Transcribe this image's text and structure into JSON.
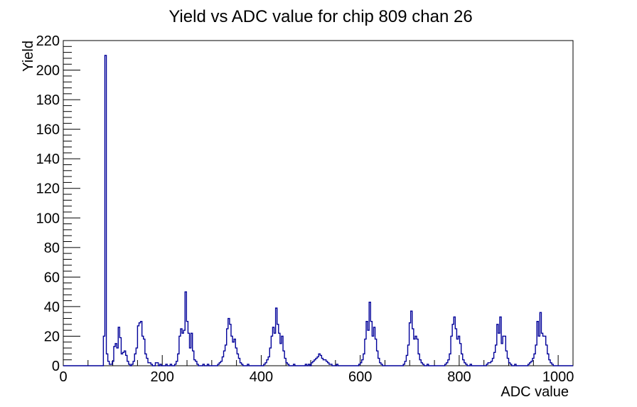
{
  "header": {
    "title": "Yield vs ADC value for chip 809 chan 26"
  },
  "chart_data": {
    "type": "bar",
    "title": "Yield vs ADC value for chip 809 chan 26",
    "xlabel": "ADC value",
    "ylabel": "Yield",
    "xlim": [
      0,
      1030
    ],
    "ylim": [
      0,
      220
    ],
    "grid": false,
    "legend": "none",
    "line_color": "#000099",
    "x_major_ticks": [
      0,
      200,
      400,
      600,
      800,
      1000
    ],
    "x_minor_step": 50,
    "y_major_ticks": [
      0,
      20,
      40,
      60,
      80,
      100,
      120,
      140,
      160,
      180,
      200,
      220
    ],
    "y_minor_step": 4,
    "bin_width": 3,
    "bins": [
      [
        81,
        20
      ],
      [
        84,
        210
      ],
      [
        87,
        8
      ],
      [
        90,
        3
      ],
      [
        93,
        1
      ],
      [
        96,
        1
      ],
      [
        99,
        3
      ],
      [
        102,
        13
      ],
      [
        105,
        15
      ],
      [
        108,
        12
      ],
      [
        111,
        26
      ],
      [
        114,
        19
      ],
      [
        117,
        8
      ],
      [
        120,
        9
      ],
      [
        123,
        10
      ],
      [
        126,
        7
      ],
      [
        129,
        3
      ],
      [
        132,
        1
      ],
      [
        138,
        1
      ],
      [
        141,
        3
      ],
      [
        144,
        8
      ],
      [
        147,
        12
      ],
      [
        150,
        27
      ],
      [
        153,
        29
      ],
      [
        156,
        30
      ],
      [
        159,
        20
      ],
      [
        162,
        18
      ],
      [
        165,
        8
      ],
      [
        168,
        5
      ],
      [
        171,
        2
      ],
      [
        174,
        2
      ],
      [
        177,
        1
      ],
      [
        186,
        2
      ],
      [
        189,
        2
      ],
      [
        195,
        1
      ],
      [
        207,
        1
      ],
      [
        216,
        1
      ],
      [
        225,
        1
      ],
      [
        228,
        3
      ],
      [
        231,
        8
      ],
      [
        234,
        20
      ],
      [
        237,
        25
      ],
      [
        240,
        22
      ],
      [
        243,
        24
      ],
      [
        246,
        50
      ],
      [
        249,
        30
      ],
      [
        252,
        22
      ],
      [
        255,
        12
      ],
      [
        258,
        22
      ],
      [
        261,
        10
      ],
      [
        264,
        4
      ],
      [
        267,
        3
      ],
      [
        270,
        1
      ],
      [
        282,
        1
      ],
      [
        291,
        1
      ],
      [
        312,
        1
      ],
      [
        315,
        2
      ],
      [
        318,
        3
      ],
      [
        321,
        6
      ],
      [
        324,
        10
      ],
      [
        327,
        14
      ],
      [
        330,
        25
      ],
      [
        333,
        32
      ],
      [
        336,
        28
      ],
      [
        339,
        20
      ],
      [
        342,
        16
      ],
      [
        345,
        18
      ],
      [
        348,
        12
      ],
      [
        351,
        8
      ],
      [
        354,
        5
      ],
      [
        357,
        2
      ],
      [
        360,
        1
      ],
      [
        372,
        1
      ],
      [
        405,
        1
      ],
      [
        408,
        2
      ],
      [
        411,
        4
      ],
      [
        414,
        6
      ],
      [
        417,
        12
      ],
      [
        420,
        20
      ],
      [
        423,
        26
      ],
      [
        426,
        22
      ],
      [
        429,
        39
      ],
      [
        432,
        28
      ],
      [
        435,
        22
      ],
      [
        438,
        15
      ],
      [
        441,
        20
      ],
      [
        444,
        10
      ],
      [
        447,
        5
      ],
      [
        450,
        2
      ],
      [
        453,
        1
      ],
      [
        465,
        1
      ],
      [
        489,
        1
      ],
      [
        495,
        1
      ],
      [
        501,
        2
      ],
      [
        504,
        3
      ],
      [
        507,
        4
      ],
      [
        510,
        5
      ],
      [
        513,
        6
      ],
      [
        516,
        8
      ],
      [
        519,
        7
      ],
      [
        522,
        5
      ],
      [
        525,
        4
      ],
      [
        528,
        4
      ],
      [
        531,
        3
      ],
      [
        534,
        2
      ],
      [
        537,
        1
      ],
      [
        540,
        1
      ],
      [
        552,
        1
      ],
      [
        597,
        1
      ],
      [
        600,
        2
      ],
      [
        603,
        4
      ],
      [
        606,
        8
      ],
      [
        609,
        18
      ],
      [
        612,
        30
      ],
      [
        615,
        24
      ],
      [
        618,
        43
      ],
      [
        621,
        30
      ],
      [
        624,
        20
      ],
      [
        627,
        26
      ],
      [
        630,
        18
      ],
      [
        633,
        10
      ],
      [
        636,
        5
      ],
      [
        639,
        2
      ],
      [
        642,
        1
      ],
      [
        687,
        1
      ],
      [
        690,
        3
      ],
      [
        693,
        7
      ],
      [
        696,
        14
      ],
      [
        699,
        29
      ],
      [
        702,
        37
      ],
      [
        705,
        25
      ],
      [
        708,
        18
      ],
      [
        711,
        20
      ],
      [
        714,
        18
      ],
      [
        717,
        8
      ],
      [
        720,
        4
      ],
      [
        723,
        2
      ],
      [
        726,
        1
      ],
      [
        735,
        1
      ],
      [
        771,
        1
      ],
      [
        774,
        2
      ],
      [
        777,
        4
      ],
      [
        780,
        8
      ],
      [
        783,
        20
      ],
      [
        786,
        28
      ],
      [
        789,
        33
      ],
      [
        792,
        25
      ],
      [
        795,
        18
      ],
      [
        798,
        20
      ],
      [
        801,
        15
      ],
      [
        804,
        8
      ],
      [
        807,
        4
      ],
      [
        810,
        2
      ],
      [
        813,
        1
      ],
      [
        822,
        1
      ],
      [
        855,
        1
      ],
      [
        858,
        2
      ],
      [
        861,
        2
      ],
      [
        864,
        3
      ],
      [
        867,
        5
      ],
      [
        870,
        9
      ],
      [
        873,
        14
      ],
      [
        876,
        28
      ],
      [
        879,
        22
      ],
      [
        882,
        33
      ],
      [
        885,
        15
      ],
      [
        888,
        20
      ],
      [
        891,
        20
      ],
      [
        894,
        10
      ],
      [
        897,
        5
      ],
      [
        900,
        2
      ],
      [
        903,
        1
      ],
      [
        912,
        1
      ],
      [
        939,
        1
      ],
      [
        942,
        2
      ],
      [
        945,
        3
      ],
      [
        948,
        5
      ],
      [
        951,
        8
      ],
      [
        954,
        14
      ],
      [
        957,
        30
      ],
      [
        960,
        20
      ],
      [
        963,
        36
      ],
      [
        966,
        22
      ],
      [
        969,
        20
      ],
      [
        972,
        20
      ],
      [
        975,
        14
      ],
      [
        978,
        8
      ],
      [
        981,
        4
      ],
      [
        984,
        2
      ],
      [
        987,
        1
      ]
    ]
  }
}
